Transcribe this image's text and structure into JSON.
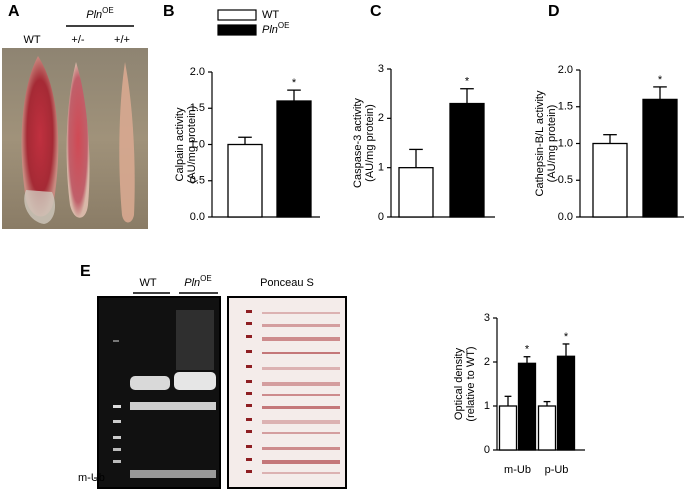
{
  "panel_labels": [
    "A",
    "B",
    "C",
    "D",
    "E"
  ],
  "panel_a": {
    "group": "Pln",
    "group_sup": "OE",
    "lanes": [
      "WT",
      "+/-",
      "+/+"
    ]
  },
  "panel_e_blot": {
    "groups": [
      {
        "name": "WT"
      },
      {
        "name": "Pln",
        "sup": "OE"
      }
    ],
    "stain": "Ponceau S",
    "band_label": "m-Ub"
  },
  "chart_data": [
    {
      "type": "bar",
      "ylabel": [
        "Calpain activity",
        "(AU/mg protein)"
      ],
      "categories": [
        null
      ],
      "legend": true,
      "ylim": [
        0,
        2
      ],
      "yticks": [
        {
          "value": 0,
          "label": "0.0"
        },
        {
          "value": 0.5,
          "label": "0.5"
        },
        {
          "value": 1,
          "label": "1.0"
        },
        {
          "value": 1.5,
          "label": "1.5"
        },
        {
          "value": 2,
          "label": "2.0"
        }
      ],
      "annotations": [
        "*"
      ],
      "series": [
        {
          "name": "WT",
          "color": "#ffffff",
          "values": [
            1.0
          ],
          "errors": [
            0.1
          ]
        },
        {
          "name": "Pln",
          "name_sup": "OE",
          "color": "#000000",
          "values": [
            1.6
          ],
          "errors": [
            0.15
          ]
        }
      ]
    },
    {
      "type": "bar",
      "ylabel": [
        "Caspase-3 activity",
        "(AU/mg protein)"
      ],
      "categories": [
        null
      ],
      "legend": false,
      "ylim": [
        0,
        3
      ],
      "yticks": [
        0,
        1,
        2,
        3
      ],
      "annotations": [
        "*"
      ],
      "series": [
        {
          "color": "#ffffff",
          "values": [
            1.0
          ],
          "errors": [
            0.37
          ]
        },
        {
          "color": "#000000",
          "values": [
            2.3
          ],
          "errors": [
            0.3
          ]
        }
      ]
    },
    {
      "type": "bar",
      "ylabel": [
        "Cathepsin-B/L activity",
        "(AU/mg protein)"
      ],
      "categories": [
        null
      ],
      "legend": false,
      "ylim": [
        0,
        2
      ],
      "yticks": [
        {
          "value": 0,
          "label": "0.0"
        },
        {
          "value": 0.5,
          "label": "0.5"
        },
        {
          "value": 1,
          "label": "1.0"
        },
        {
          "value": 1.5,
          "label": "1.5"
        },
        {
          "value": 2,
          "label": "2.0"
        }
      ],
      "annotations": [
        "*"
      ],
      "series": [
        {
          "color": "#ffffff",
          "values": [
            1.0
          ],
          "errors": [
            0.12
          ]
        },
        {
          "color": "#000000",
          "values": [
            1.6
          ],
          "errors": [
            0.17
          ]
        }
      ]
    },
    {
      "type": "bar",
      "ylabel": [
        "Optical density",
        "(relative to WT)"
      ],
      "categories": [
        "m-Ub",
        "p-Ub"
      ],
      "legend": false,
      "ylim": [
        0,
        3
      ],
      "yticks": [
        0,
        1,
        2,
        3
      ],
      "annotations": [
        "*",
        "*"
      ],
      "series": [
        {
          "color": "#ffffff",
          "values": [
            1.0,
            1.0
          ],
          "errors": [
            0.22,
            0.1
          ]
        },
        {
          "color": "#000000",
          "values": [
            1.97,
            2.13
          ],
          "errors": [
            0.15,
            0.28
          ]
        }
      ]
    }
  ]
}
